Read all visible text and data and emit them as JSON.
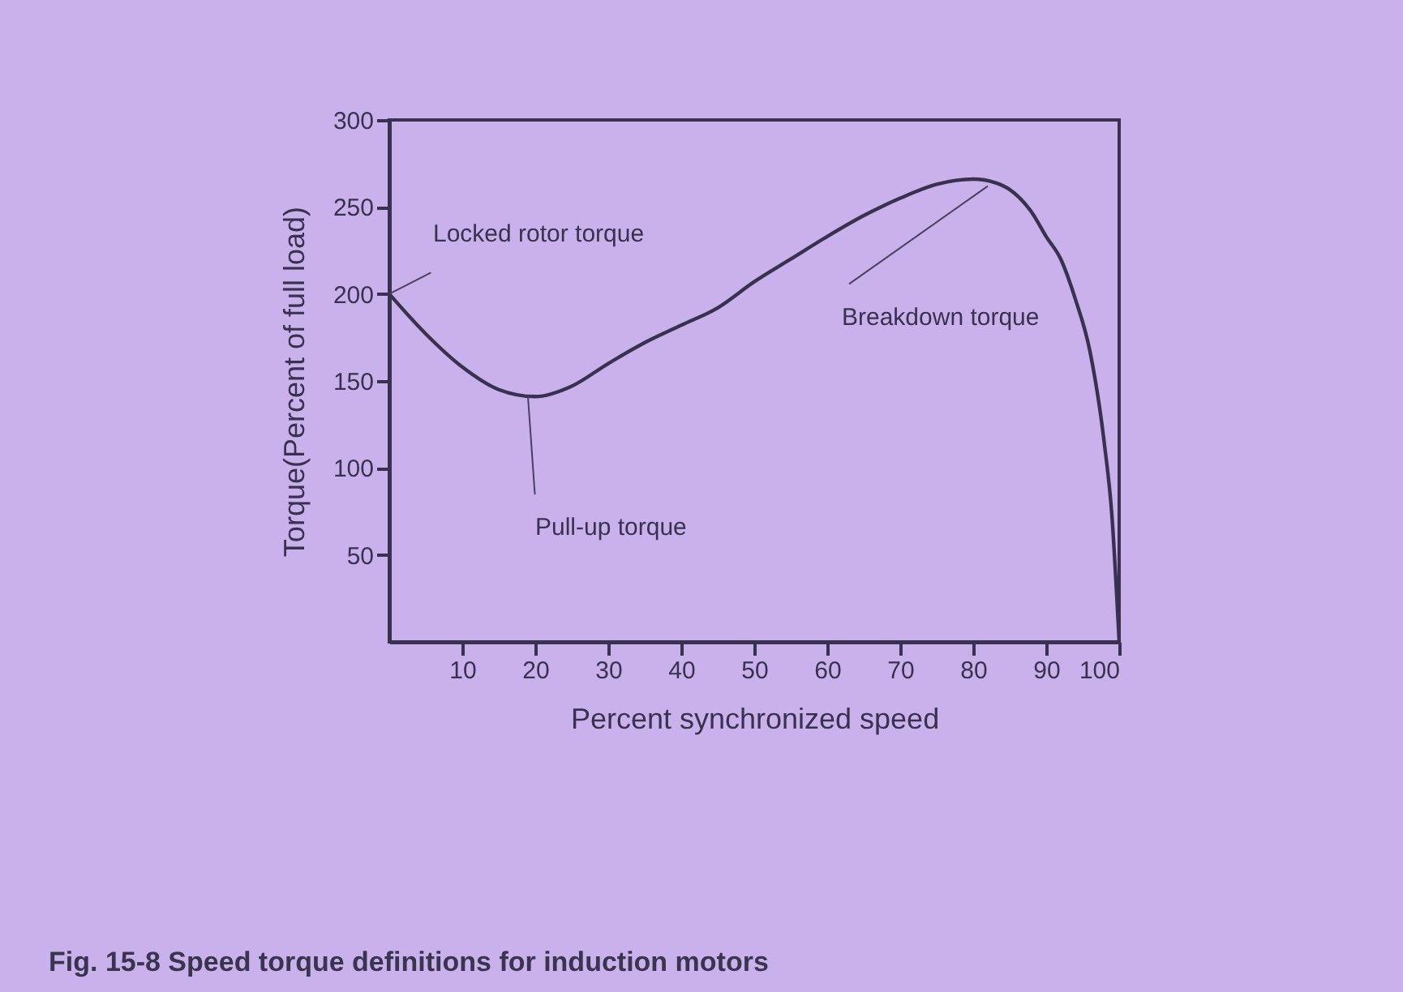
{
  "chart_data": {
    "type": "line",
    "title": "Fig. 15-8 Speed torque definitions for induction motors",
    "xlabel": "Percent synchronized speed",
    "ylabel": "Torque(Percent of full load)",
    "x": [
      0,
      5,
      10,
      15,
      20,
      25,
      30,
      35,
      40,
      45,
      50,
      55,
      60,
      65,
      70,
      75,
      80,
      83,
      85,
      88,
      90,
      92,
      94,
      96,
      98,
      99,
      100
    ],
    "series": [
      {
        "color": "#3a3050",
        "values": [
          200,
          177,
          158,
          145,
          141,
          147,
          160,
          172,
          182,
          192,
          207,
          220,
          233,
          245,
          255,
          263,
          266,
          264,
          260,
          247,
          233,
          220,
          197,
          167,
          113,
          73,
          0
        ]
      }
    ],
    "xlim": [
      0,
      100
    ],
    "xticks": [
      10,
      20,
      30,
      40,
      50,
      60,
      70,
      80,
      90,
      100
    ],
    "ylim": [
      0,
      300
    ],
    "yticks": [
      50,
      100,
      150,
      200,
      250,
      300
    ],
    "grid": false,
    "legend": false,
    "marker": "none",
    "line_style": "solid",
    "annotations": [
      {
        "text": "Locked rotor torque",
        "x": 0,
        "y": 200
      },
      {
        "text": "Pull-up torque",
        "x": 19,
        "y": 141
      },
      {
        "text": "Breakdown torque",
        "x": 82,
        "y": 262
      }
    ]
  }
}
